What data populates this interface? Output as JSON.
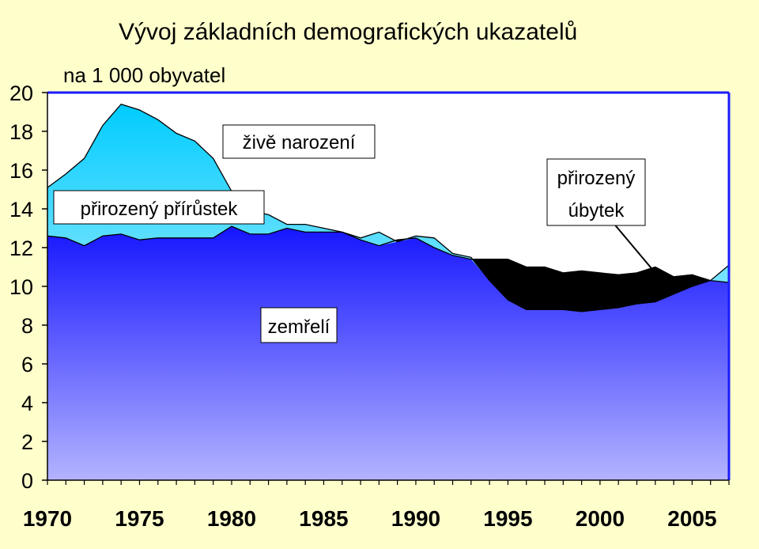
{
  "chart_data": {
    "type": "area",
    "title": "Vývoj základních demografických ukazatelů",
    "subtitle": "na 1 000 obyvatel",
    "xlabel": "",
    "ylabel": "",
    "ylim": [
      0,
      20
    ],
    "xlim": [
      1970,
      2007
    ],
    "yticks": [
      "0",
      "2",
      "4",
      "6",
      "8",
      "10",
      "12",
      "14",
      "16",
      "18",
      "20"
    ],
    "xticks": [
      "1970",
      "1975",
      "1980",
      "1985",
      "1990",
      "1995",
      "2000",
      "2005"
    ],
    "grid": false,
    "x": [
      1970,
      1971,
      1972,
      1973,
      1974,
      1975,
      1976,
      1977,
      1978,
      1979,
      1980,
      1981,
      1982,
      1983,
      1984,
      1985,
      1986,
      1987,
      1988,
      1989,
      1990,
      1991,
      1992,
      1993,
      1994,
      1995,
      1996,
      1997,
      1998,
      1999,
      2000,
      2001,
      2002,
      2003,
      2004,
      2005,
      2006,
      2007
    ],
    "series": [
      {
        "name": "živě narození",
        "values": [
          15.1,
          15.8,
          16.6,
          18.3,
          19.4,
          19.1,
          18.6,
          17.9,
          17.5,
          16.6,
          14.9,
          13.9,
          13.7,
          13.2,
          13.2,
          13.0,
          12.8,
          12.5,
          12.8,
          12.3,
          12.6,
          12.5,
          11.7,
          11.5,
          10.3,
          9.3,
          8.8,
          8.8,
          8.8,
          8.7,
          8.8,
          8.9,
          9.1,
          9.2,
          9.6,
          10.0,
          10.3,
          11.1
        ]
      },
      {
        "name": "zemřelí",
        "values": [
          12.6,
          12.5,
          12.1,
          12.6,
          12.7,
          12.4,
          12.5,
          12.5,
          12.5,
          12.5,
          13.1,
          12.7,
          12.7,
          13.0,
          12.8,
          12.8,
          12.8,
          12.4,
          12.1,
          12.4,
          12.5,
          12.0,
          11.6,
          11.4,
          11.4,
          11.4,
          11.0,
          11.0,
          10.7,
          10.8,
          10.7,
          10.6,
          10.7,
          11.0,
          10.5,
          10.6,
          10.3,
          10.2
        ]
      }
    ],
    "annotations": [
      "živě narození",
      "přirozený přírůstek",
      "přirozený úbytek",
      "zemřelí"
    ]
  },
  "colors": {
    "background": "#ffffcc",
    "plot_background": "#ffffff",
    "births_fill_top": "#00ccff",
    "births_fill_bottom": "#ffffff",
    "deaths_fill_top": "#1515ff",
    "deaths_fill_bottom": "#b3b3ff",
    "decrease_fill": "#000000",
    "axis_color": "#000000",
    "frame_color": "#1a1aff"
  },
  "labels": {
    "births": "živě narození",
    "natural_increase": "přirozený přírůstek",
    "natural_decrease_line1": "přirozený",
    "natural_decrease_line2": "úbytek",
    "deaths": "zemřelí"
  }
}
